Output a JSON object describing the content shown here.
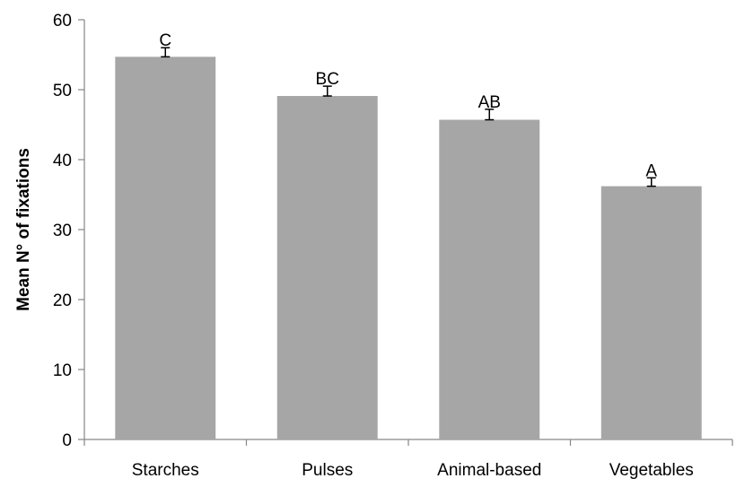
{
  "chart_data": {
    "type": "bar",
    "title": "",
    "xlabel": "",
    "ylabel": "Mean N° of fixations",
    "categories": [
      "Starches",
      "Pulses",
      "Animal-based",
      "Vegetables"
    ],
    "values": [
      54.7,
      49.1,
      45.7,
      36.2
    ],
    "error": [
      1.3,
      1.4,
      1.5,
      1.2
    ],
    "significance_letters": [
      "C",
      "BC",
      "AB",
      "A"
    ],
    "ylim": [
      0,
      60
    ],
    "yticks": [
      0,
      10,
      20,
      30,
      40,
      50,
      60
    ],
    "grid": false,
    "legend": "none",
    "colors": {
      "bar": "#a6a6a6",
      "axis": "#868686",
      "error_bar": "#000000",
      "text": "#000000"
    }
  }
}
